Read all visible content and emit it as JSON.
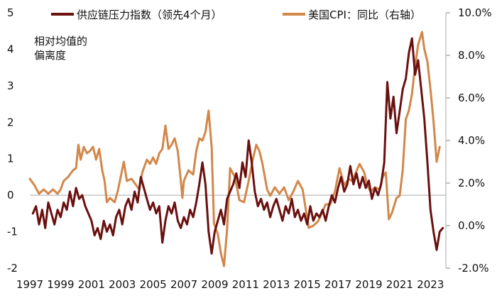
{
  "chart_data": {
    "type": "line",
    "left_axis": {
      "min": -2,
      "max": 5,
      "ticks": [
        "5",
        "4",
        "3",
        "2",
        "1",
        "0",
        "-1",
        "-2"
      ]
    },
    "right_axis": {
      "min": -2.0,
      "max": 10.0,
      "ticks": [
        "10.0%",
        "8.0%",
        "6.0%",
        "4.0%",
        "2.0%",
        "0.0%",
        "-2.0%"
      ]
    },
    "x_axis": {
      "min": 1997,
      "max": 2024,
      "ticks": [
        "1997",
        "1999",
        "2001",
        "2003",
        "2005",
        "2007",
        "2009",
        "2011",
        "2013",
        "2015",
        "2017",
        "2019",
        "2021",
        "2023"
      ]
    },
    "annotation": [
      "相对均值的",
      "偏离度"
    ],
    "legend_position": "top",
    "series": [
      {
        "name": "供应链压力指数（领先4个月）",
        "axis": "left",
        "color": "#6b0f0f",
        "points": [
          [
            1997.2,
            -0.5
          ],
          [
            1997.4,
            -0.3
          ],
          [
            1997.6,
            -0.8
          ],
          [
            1997.8,
            -0.4
          ],
          [
            1998.0,
            -0.9
          ],
          [
            1998.2,
            -0.2
          ],
          [
            1998.4,
            -0.5
          ],
          [
            1998.6,
            -0.8
          ],
          [
            1998.8,
            -0.4
          ],
          [
            1999.0,
            -0.6
          ],
          [
            1999.2,
            -0.2
          ],
          [
            1999.4,
            -0.4
          ],
          [
            1999.6,
            0.1
          ],
          [
            1999.8,
            -0.3
          ],
          [
            2000.0,
            0.2
          ],
          [
            2000.2,
            -0.1
          ],
          [
            2000.4,
            0.0
          ],
          [
            2000.6,
            -0.3
          ],
          [
            2000.8,
            -0.5
          ],
          [
            2001.0,
            -0.7
          ],
          [
            2001.2,
            -1.1
          ],
          [
            2001.4,
            -0.9
          ],
          [
            2001.6,
            -1.2
          ],
          [
            2001.8,
            -0.7
          ],
          [
            2002.0,
            -1.0
          ],
          [
            2002.2,
            -0.8
          ],
          [
            2002.4,
            -1.1
          ],
          [
            2002.6,
            -0.6
          ],
          [
            2002.8,
            -0.4
          ],
          [
            2003.0,
            -0.8
          ],
          [
            2003.2,
            -0.3
          ],
          [
            2003.4,
            -0.1
          ],
          [
            2003.6,
            -0.4
          ],
          [
            2003.8,
            0.1
          ],
          [
            2004.0,
            -0.2
          ],
          [
            2004.2,
            0.5
          ],
          [
            2004.4,
            0.2
          ],
          [
            2004.6,
            -0.1
          ],
          [
            2004.8,
            -0.4
          ],
          [
            2005.0,
            -0.2
          ],
          [
            2005.2,
            -0.5
          ],
          [
            2005.4,
            -0.3
          ],
          [
            2005.6,
            -1.3
          ],
          [
            2005.8,
            -0.7
          ],
          [
            2006.0,
            -0.3
          ],
          [
            2006.2,
            -0.5
          ],
          [
            2006.4,
            -0.2
          ],
          [
            2006.6,
            -0.7
          ],
          [
            2006.8,
            -0.9
          ],
          [
            2007.0,
            -0.6
          ],
          [
            2007.2,
            -0.8
          ],
          [
            2007.4,
            -0.4
          ],
          [
            2007.6,
            -0.6
          ],
          [
            2007.8,
            -0.2
          ],
          [
            2008.0,
            0.3
          ],
          [
            2008.2,
            0.9
          ],
          [
            2008.4,
            0.3
          ],
          [
            2008.6,
            -1.0
          ],
          [
            2008.8,
            -1.6
          ],
          [
            2009.0,
            -1.0
          ],
          [
            2009.2,
            -0.7
          ],
          [
            2009.4,
            -0.4
          ],
          [
            2009.6,
            -0.8
          ],
          [
            2009.8,
            -0.1
          ],
          [
            2010.0,
            0.1
          ],
          [
            2010.2,
            0.3
          ],
          [
            2010.4,
            0.6
          ],
          [
            2010.6,
            0.2
          ],
          [
            2010.8,
            0.9
          ],
          [
            2011.0,
            0.5
          ],
          [
            2011.2,
            1.5
          ],
          [
            2011.4,
            0.9
          ],
          [
            2011.6,
            0.1
          ],
          [
            2011.8,
            -0.3
          ],
          [
            2012.0,
            -0.1
          ],
          [
            2012.2,
            -0.4
          ],
          [
            2012.4,
            -0.2
          ],
          [
            2012.6,
            -0.6
          ],
          [
            2012.8,
            -0.3
          ],
          [
            2013.0,
            -0.1
          ],
          [
            2013.2,
            -0.4
          ],
          [
            2013.4,
            -0.7
          ],
          [
            2013.6,
            -0.3
          ],
          [
            2013.8,
            -0.5
          ],
          [
            2014.0,
            -0.1
          ],
          [
            2014.2,
            -0.6
          ],
          [
            2014.4,
            -0.4
          ],
          [
            2014.6,
            -0.7
          ],
          [
            2014.8,
            -0.5
          ],
          [
            2015.0,
            -0.8
          ],
          [
            2015.2,
            -0.3
          ],
          [
            2015.4,
            -0.7
          ],
          [
            2015.6,
            -0.5
          ],
          [
            2015.8,
            -0.6
          ],
          [
            2016.0,
            -0.4
          ],
          [
            2016.2,
            -0.7
          ],
          [
            2016.4,
            -0.3
          ],
          [
            2016.6,
            0.0
          ],
          [
            2016.8,
            -0.2
          ],
          [
            2017.0,
            0.2
          ],
          [
            2017.2,
            0.5
          ],
          [
            2017.4,
            0.1
          ],
          [
            2017.6,
            0.3
          ],
          [
            2017.8,
            0.8
          ],
          [
            2018.0,
            0.3
          ],
          [
            2018.2,
            0.6
          ],
          [
            2018.4,
            0.2
          ],
          [
            2018.6,
            0.5
          ],
          [
            2018.8,
            0.2
          ],
          [
            2019.0,
            0.4
          ],
          [
            2019.2,
            -0.1
          ],
          [
            2019.4,
            0.2
          ],
          [
            2019.6,
            0.0
          ],
          [
            2019.8,
            0.3
          ],
          [
            2020.0,
            0.9
          ],
          [
            2020.2,
            3.1
          ],
          [
            2020.4,
            2.1
          ],
          [
            2020.6,
            2.7
          ],
          [
            2020.8,
            1.7
          ],
          [
            2021.0,
            2.3
          ],
          [
            2021.2,
            2.9
          ],
          [
            2021.4,
            3.2
          ],
          [
            2021.6,
            3.9
          ],
          [
            2021.8,
            4.3
          ],
          [
            2022.0,
            3.3
          ],
          [
            2022.2,
            3.7
          ],
          [
            2022.4,
            2.9
          ],
          [
            2022.6,
            2.1
          ],
          [
            2022.8,
            0.9
          ],
          [
            2023.0,
            -0.4
          ],
          [
            2023.2,
            -1.0
          ],
          [
            2023.4,
            -1.5
          ],
          [
            2023.6,
            -1.0
          ],
          [
            2023.8,
            -0.9
          ]
        ]
      },
      {
        "name": "美国CPI：同比（右轴）",
        "axis": "right",
        "color": "#d2874a",
        "points": [
          [
            1997.0,
            2.2
          ],
          [
            1997.3,
            1.9
          ],
          [
            1997.6,
            1.5
          ],
          [
            1997.9,
            1.7
          ],
          [
            1998.2,
            1.5
          ],
          [
            1998.5,
            1.7
          ],
          [
            1998.8,
            1.5
          ],
          [
            1999.0,
            1.7
          ],
          [
            1999.2,
            2.1
          ],
          [
            1999.5,
            2.3
          ],
          [
            1999.8,
            2.6
          ],
          [
            2000.0,
            2.7
          ],
          [
            2000.15,
            3.8
          ],
          [
            2000.3,
            3.1
          ],
          [
            2000.5,
            3.7
          ],
          [
            2000.7,
            3.4
          ],
          [
            2000.9,
            3.5
          ],
          [
            2001.1,
            3.7
          ],
          [
            2001.3,
            3.1
          ],
          [
            2001.5,
            3.6
          ],
          [
            2001.7,
            2.6
          ],
          [
            2001.85,
            2.1
          ],
          [
            2002.0,
            1.1
          ],
          [
            2002.2,
            1.3
          ],
          [
            2002.5,
            1.1
          ],
          [
            2002.7,
            1.6
          ],
          [
            2002.9,
            2.3
          ],
          [
            2003.1,
            3.0
          ],
          [
            2003.3,
            2.1
          ],
          [
            2003.6,
            2.2
          ],
          [
            2003.9,
            1.9
          ],
          [
            2004.1,
            1.7
          ],
          [
            2004.3,
            2.5
          ],
          [
            2004.6,
            3.1
          ],
          [
            2004.8,
            2.9
          ],
          [
            2005.0,
            3.2
          ],
          [
            2005.2,
            2.9
          ],
          [
            2005.4,
            3.4
          ],
          [
            2005.6,
            3.6
          ],
          [
            2005.8,
            4.7
          ],
          [
            2006.0,
            3.6
          ],
          [
            2006.2,
            3.8
          ],
          [
            2006.4,
            4.1
          ],
          [
            2006.6,
            3.5
          ],
          [
            2006.8,
            2.1
          ],
          [
            2006.9,
            1.3
          ],
          [
            2007.0,
            2.1
          ],
          [
            2007.3,
            2.6
          ],
          [
            2007.6,
            2.4
          ],
          [
            2007.8,
            3.5
          ],
          [
            2008.0,
            4.1
          ],
          [
            2008.2,
            4.0
          ],
          [
            2008.4,
            4.4
          ],
          [
            2008.6,
            5.4
          ],
          [
            2008.8,
            3.7
          ],
          [
            2008.95,
            0.1
          ],
          [
            2009.2,
            -0.4
          ],
          [
            2009.4,
            -1.3
          ],
          [
            2009.6,
            -1.9
          ],
          [
            2009.8,
            -0.2
          ],
          [
            2010.0,
            2.7
          ],
          [
            2010.3,
            2.3
          ],
          [
            2010.6,
            1.2
          ],
          [
            2010.9,
            1.1
          ],
          [
            2011.2,
            2.1
          ],
          [
            2011.5,
            3.2
          ],
          [
            2011.7,
            3.8
          ],
          [
            2011.9,
            3.5
          ],
          [
            2012.1,
            2.9
          ],
          [
            2012.4,
            1.7
          ],
          [
            2012.6,
            1.4
          ],
          [
            2012.9,
            1.8
          ],
          [
            2013.2,
            1.5
          ],
          [
            2013.5,
            1.8
          ],
          [
            2013.8,
            1.2
          ],
          [
            2014.1,
            1.6
          ],
          [
            2014.4,
            2.1
          ],
          [
            2014.7,
            1.7
          ],
          [
            2014.9,
            0.8
          ],
          [
            2015.1,
            -0.1
          ],
          [
            2015.4,
            0.0
          ],
          [
            2015.7,
            0.2
          ],
          [
            2015.9,
            0.5
          ],
          [
            2016.2,
            1.0
          ],
          [
            2016.5,
            1.0
          ],
          [
            2016.8,
            1.6
          ],
          [
            2017.1,
            2.7
          ],
          [
            2017.4,
            1.9
          ],
          [
            2017.7,
            2.2
          ],
          [
            2017.9,
            2.1
          ],
          [
            2018.1,
            2.4
          ],
          [
            2018.4,
            2.9
          ],
          [
            2018.7,
            2.5
          ],
          [
            2018.9,
            1.9
          ],
          [
            2019.1,
            1.6
          ],
          [
            2019.4,
            1.8
          ],
          [
            2019.7,
            1.7
          ],
          [
            2019.9,
            2.3
          ],
          [
            2020.1,
            2.5
          ],
          [
            2020.3,
            0.3
          ],
          [
            2020.5,
            0.6
          ],
          [
            2020.8,
            1.3
          ],
          [
            2021.0,
            1.4
          ],
          [
            2021.2,
            2.6
          ],
          [
            2021.4,
            5.0
          ],
          [
            2021.6,
            5.4
          ],
          [
            2021.8,
            6.2
          ],
          [
            2022.0,
            7.5
          ],
          [
            2022.2,
            8.5
          ],
          [
            2022.45,
            9.1
          ],
          [
            2022.6,
            8.3
          ],
          [
            2022.8,
            7.7
          ],
          [
            2023.0,
            6.4
          ],
          [
            2023.2,
            4.9
          ],
          [
            2023.4,
            3.0
          ],
          [
            2023.6,
            3.7
          ]
        ]
      }
    ]
  }
}
